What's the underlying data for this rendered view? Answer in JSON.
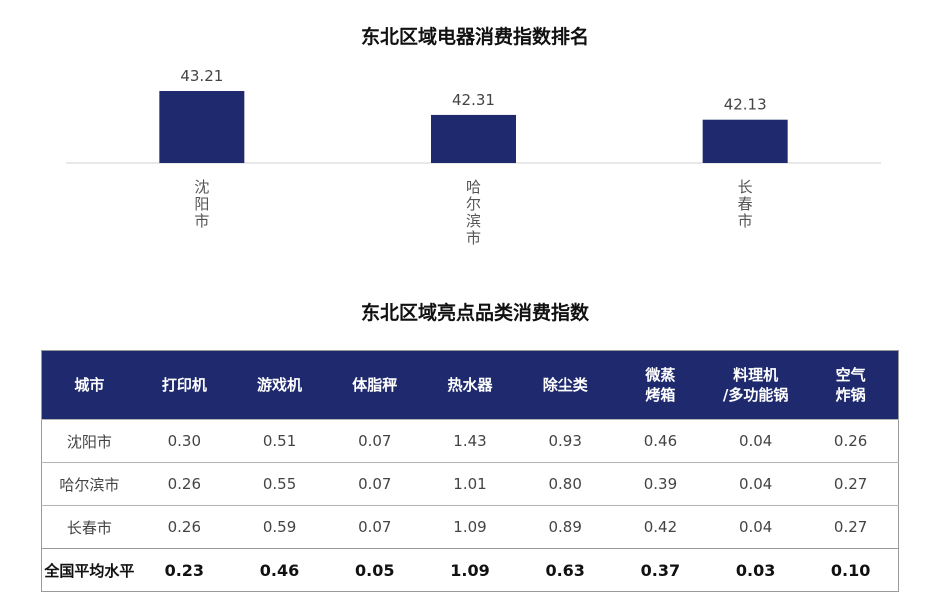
{
  "chart_data": {
    "type": "bar",
    "title": "东北区域电器消费指数排名",
    "categories": [
      "沈阳市",
      "哈尔滨市",
      "长春市"
    ],
    "values": [
      43.21,
      42.31,
      42.13
    ],
    "value_labels": [
      "43.21",
      "42.31",
      "42.13"
    ],
    "ylim": [
      40.5,
      43.7
    ],
    "bar_color": "#1f2a6e",
    "grid": false,
    "legend": "none"
  },
  "table": {
    "title": "东北区域亮点品类消费指数",
    "header_color": "#1f2a6e",
    "headers": [
      [
        "城市"
      ],
      [
        "打印机"
      ],
      [
        "游戏机"
      ],
      [
        "体脂秤"
      ],
      [
        "热水器"
      ],
      [
        "除尘类"
      ],
      [
        "微蒸",
        "烤箱"
      ],
      [
        "料理机",
        "/多功能锅"
      ],
      [
        "空气",
        "炸锅"
      ]
    ],
    "rows": [
      [
        "沈阳市",
        "0.30",
        "0.51",
        "0.07",
        "1.43",
        "0.93",
        "0.46",
        "0.04",
        "0.26"
      ],
      [
        "哈尔滨市",
        "0.26",
        "0.55",
        "0.07",
        "1.01",
        "0.80",
        "0.39",
        "0.04",
        "0.27"
      ],
      [
        "长春市",
        "0.26",
        "0.59",
        "0.07",
        "1.09",
        "0.89",
        "0.42",
        "0.04",
        "0.27"
      ],
      [
        "全国平均水平",
        "0.23",
        "0.46",
        "0.05",
        "1.09",
        "0.63",
        "0.37",
        "0.03",
        "0.10"
      ]
    ]
  }
}
